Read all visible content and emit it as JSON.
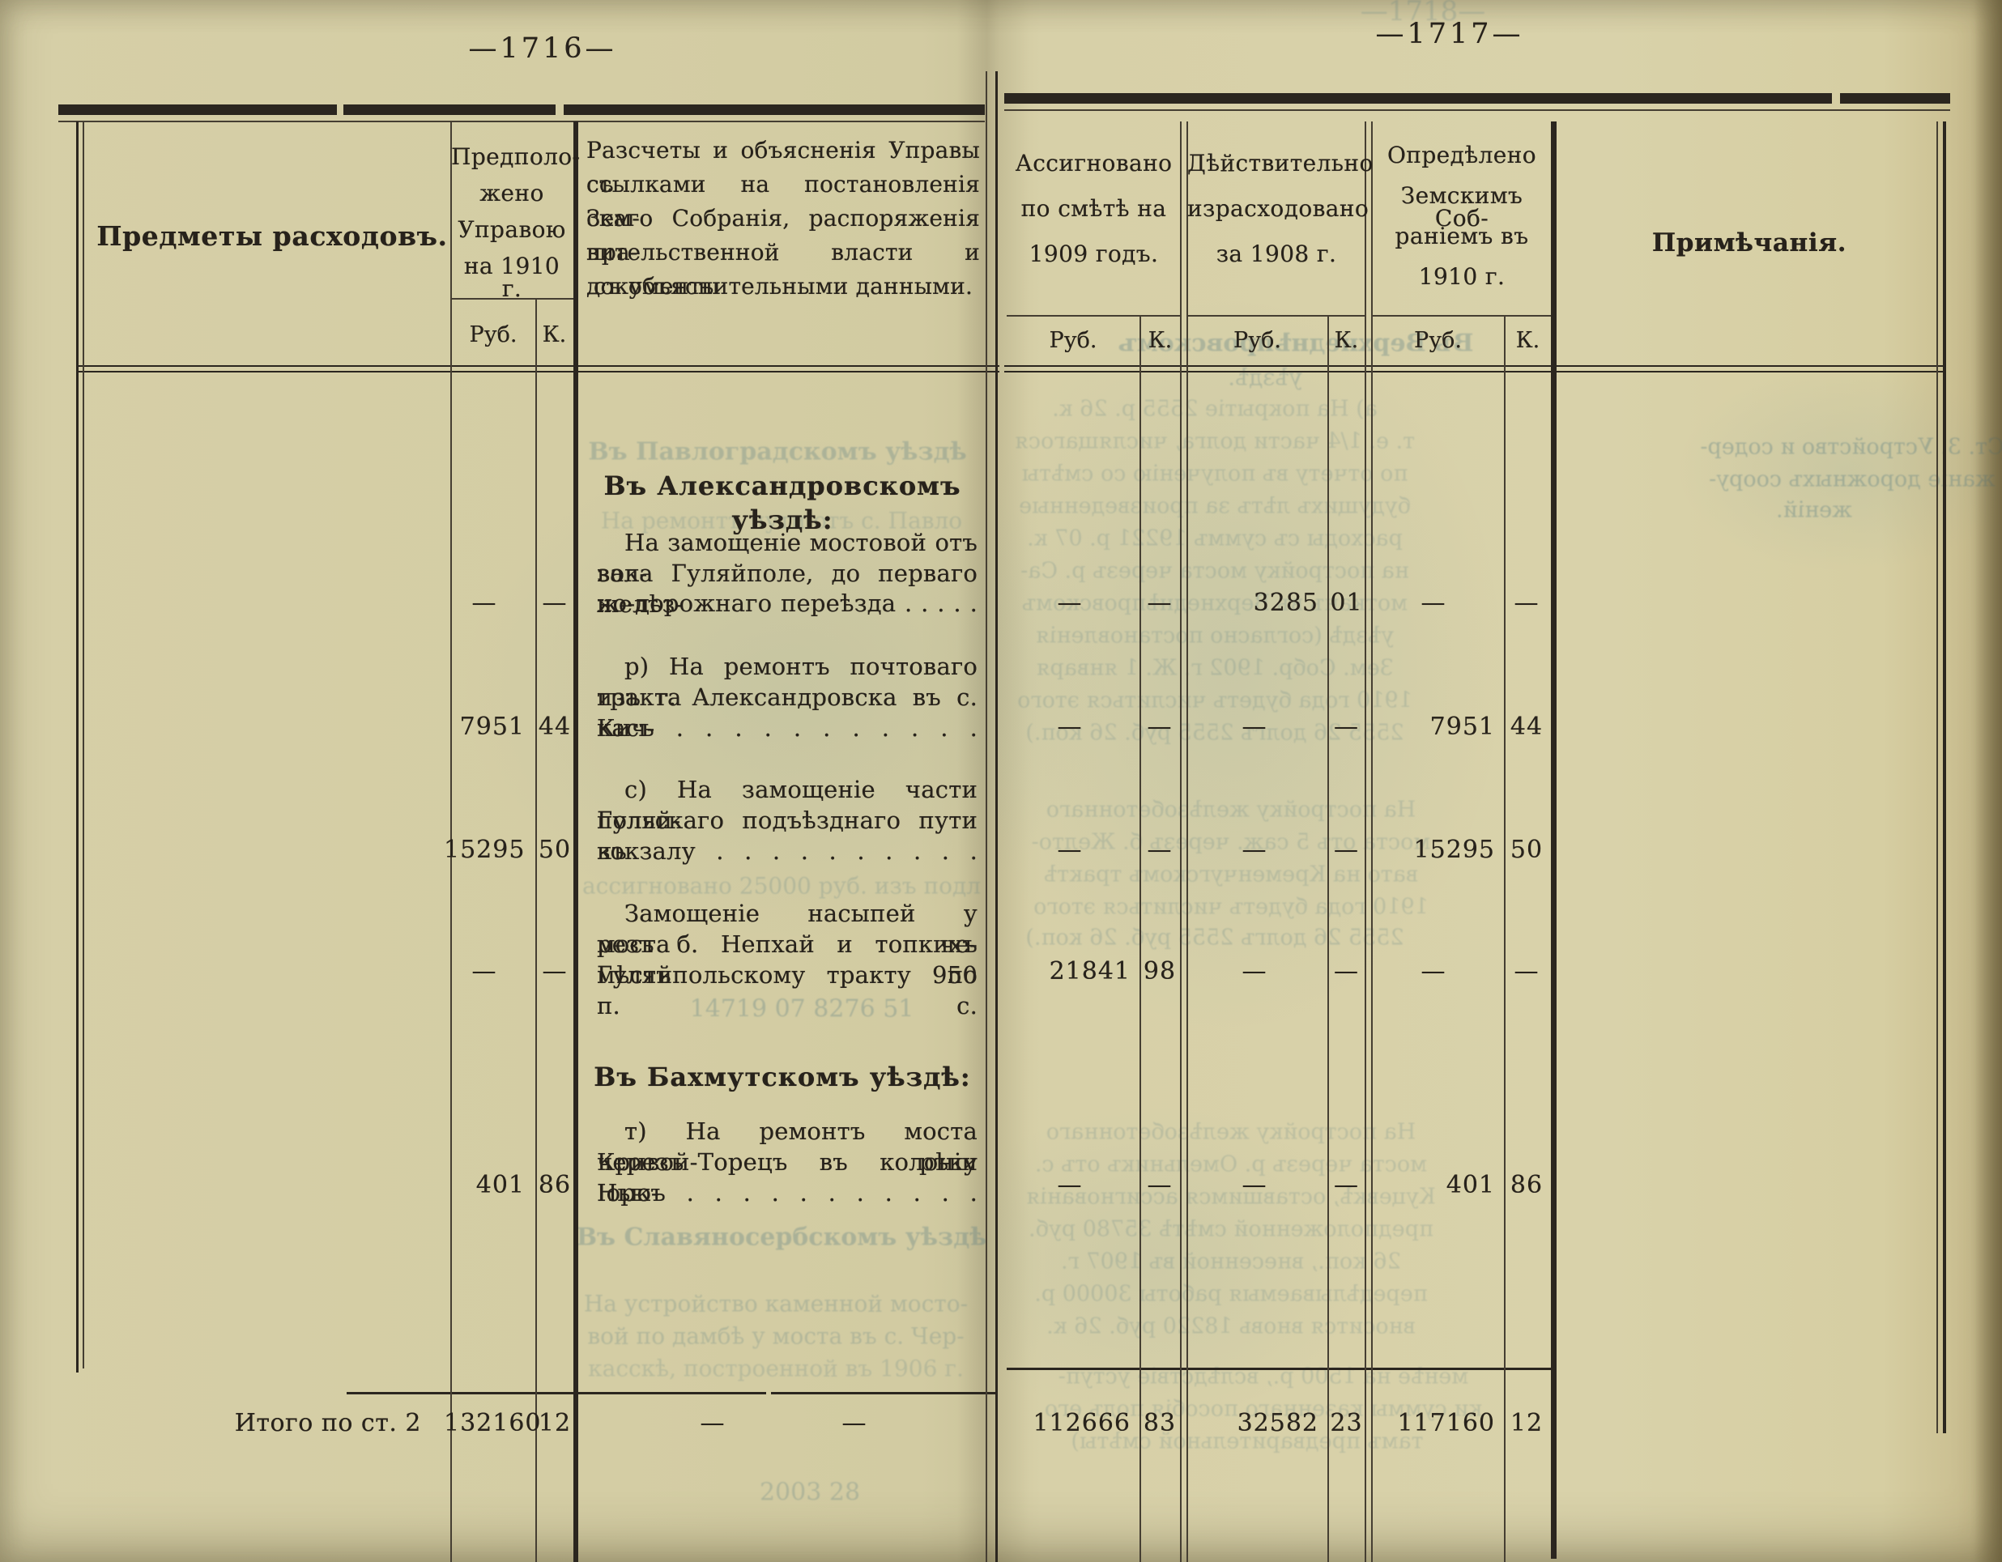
{
  "page_numbers": {
    "left": "—1716—",
    "right": "—1717—"
  },
  "labels": {
    "rub": "Руб.",
    "kop": "К."
  },
  "page_left": {
    "items_header": "Предметы расходовъ.",
    "proposed_lines": [
      "Предполо-",
      "жено",
      "Управою",
      "на 1910 г."
    ],
    "explanations_lines": [
      "Разсчеты и объясненія Управы съ",
      "ссылками на постановленія Зем-",
      "скаго Собранія, распоряженія пра-",
      "вительственной власти и документы",
      "съ объяснительными данными."
    ]
  },
  "page_right": {
    "assigned_lines": [
      "Ассигновано",
      "по смѣтѣ на",
      "1909 годъ."
    ],
    "spent_lines": [
      "Дѣйствительно",
      "израсходовано",
      "за 1908 г."
    ],
    "determined_lines": [
      "Опредѣлено",
      "Земскимъ Соб-",
      "раніемъ въ",
      "1910 г."
    ],
    "notes_header": "Примѣчанія."
  },
  "body": {
    "sections": [
      {
        "kind": "heading",
        "text": "Въ Александровскомъ уѣздѣ:"
      },
      {
        "kind": "entry",
        "lines": [
          "На замощеніе мостовой отъ вок-",
          "зала Гуляйполе, до перваго желѣз-",
          "но-дорожнаго переѣзда . . . . ."
        ],
        "values": {
          "proposed": [
            "—",
            "—"
          ],
          "assigned": [
            "—",
            "—"
          ],
          "spent": [
            "3285",
            "01"
          ],
          "determined": [
            "—",
            "—"
          ]
        }
      },
      {
        "kind": "entry",
        "lines": [
          "р) На ремонтъ почтоваго тракта",
          "изъ г. Александровска въ с. Кич-",
          "касъ . . . . . . . . . . ."
        ],
        "values": {
          "proposed": [
            "7951",
            "44"
          ],
          "assigned": [
            "—",
            "—"
          ],
          "spent": [
            "—",
            "—"
          ],
          "determined": [
            "7951",
            "44"
          ]
        }
      },
      {
        "kind": "entry",
        "lines": [
          "с) На замощеніе части Гуляй-",
          "польскаго подъѣзднаго пути къ",
          "вокзалу . . . . . . . . . ."
        ],
        "values": {
          "proposed": [
            "15295",
            "50"
          ],
          "assigned": [
            "—",
            "—"
          ],
          "spent": [
            "—",
            "—"
          ],
          "determined": [
            "15295",
            "50"
          ]
        }
      },
      {
        "kind": "entry",
        "lines": [
          "Замощеніе насыпей у моста че-",
          "резъ б. Непхай и топкихъ мѣстъ по",
          "Гуляйпольскому тракту 950 п. с."
        ],
        "values": {
          "proposed": [
            "—",
            "—"
          ],
          "assigned": [
            "21841",
            "98"
          ],
          "spent": [
            "—",
            "—"
          ],
          "determined": [
            "—",
            "—"
          ]
        }
      },
      {
        "kind": "heading",
        "text": "Въ Бахмутскомъ уѣздѣ:"
      },
      {
        "kind": "entry",
        "lines": [
          "т) На ремонтъ моста черезъ рѣку",
          "Кривой-Торецъ въ колоніи Нью-",
          "Іоркъ . . . . . . . . . . ."
        ],
        "values": {
          "proposed": [
            "401",
            "86"
          ],
          "assigned": [
            "—",
            "—"
          ],
          "spent": [
            "—",
            "—"
          ],
          "determined": [
            "401",
            "86"
          ]
        }
      }
    ],
    "total": {
      "label": "Итого по ст. 2",
      "explanation_dashes": [
        "—",
        "—"
      ],
      "values": {
        "proposed": [
          "132160",
          "12"
        ],
        "assigned": [
          "112666",
          "83"
        ],
        "spent": [
          "32582",
          "23"
        ],
        "determined": [
          "117160",
          "12"
        ]
      }
    }
  },
  "bleedthrough_texts": [
    "—1718—",
    "Въ Павлоградскомъ уѣздѣ",
    "На ремонтъ пути отъ с. Павло",
    "ассигновано 25000 руб. изъ подл",
    "14719  07        8276  51",
    "Въ Славяносербскомъ уѣздѣ",
    "На устройство каменной мосто-",
    "вой по дамбѣ у моста въ с. Чер-",
    "касскѣ, построенной въ 1906 г.",
    "2003    28",
    "Въ Верхнеднѣпровскомъ",
    "уѣздѣ.",
    "а) На покрытіе 2555 р. 26 к.",
    "т. е. 1/4 части долга, числящагося",
    "по отчету въ полученію со смѣты",
    "будущихъ лѣтъ за произведенные",
    "расходы съ суммъ 19221 р. 07 к.",
    "на постройку моста черезъ р. Са-",
    "мотканъ въ Верхнеднѣпровскомъ",
    "уѣздѣ (согласно постановленія",
    "Зем. Собр. 1902 г. Ж. 1 января",
    "1910 года будетъ числиться этого",
    "2555 26 долгъ 2555 руб. 26 коп.)",
    "На постройку желѣзобетоннаго",
    "моста отъ 5 саж. черезъ б. Желто-",
    "вато на Кременчугскомъ трактѣ",
    "На постройку желѣзобетоннаго",
    "моста черезъ р. Омельникъ отъ с.",
    "Куцевкѣ, оставшимся ассигнованія",
    "предположенной смѣтѣ 35780 руб.",
    "26 коп., внесенной въ 1907 г.",
    "передѣлываемыя работы 30000 р.",
    "вносится вновь 18220 руб. 26 к.",
    "менѣе на 1500 р., вслѣдствіе уступ-",
    "ки суммы казеннаго пособія подъ его",
    "тамъ предварительной смѣты)",
    "Ст. 3. Устройство и содер-",
    "жаніе дорожныхъ соору-",
    "женій."
  ]
}
